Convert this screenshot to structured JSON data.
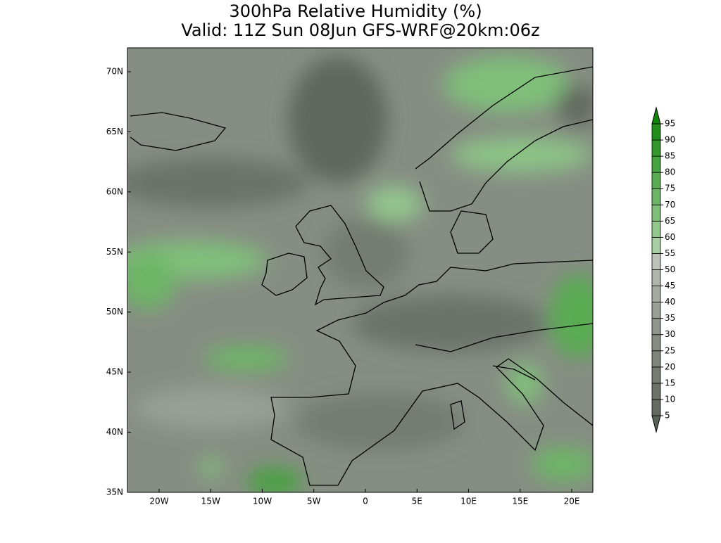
{
  "title": [
    "300hPa Relative Humidity (%)",
    "Valid: 11Z Sun 08Jun GFS-WRF@20km:06z"
  ],
  "map": {
    "lat_labels": [
      "70N",
      "65N",
      "60N",
      "55N",
      "50N",
      "45N",
      "40N",
      "35N"
    ],
    "lon_labels": [
      "20W",
      "15W",
      "10W",
      "5W",
      "0",
      "5E",
      "10E",
      "15E",
      "20E"
    ]
  },
  "colorbar": {
    "levels": [
      5,
      10,
      15,
      20,
      25,
      30,
      35,
      40,
      45,
      50,
      55,
      60,
      65,
      70,
      75,
      80,
      85,
      90,
      95
    ],
    "colors": [
      "#5a6358",
      "#636b60",
      "#6b7369",
      "#747c71",
      "#7d857a",
      "#868e83",
      "#8f978c",
      "#99a096",
      "#a4aba1",
      "#afb6ac",
      "#bcc3b9",
      "#a7cfa3",
      "#93c78e",
      "#80bf7a",
      "#6db566",
      "#5aac53",
      "#47a240",
      "#35982e",
      "#238e1c",
      "#118509"
    ]
  }
}
